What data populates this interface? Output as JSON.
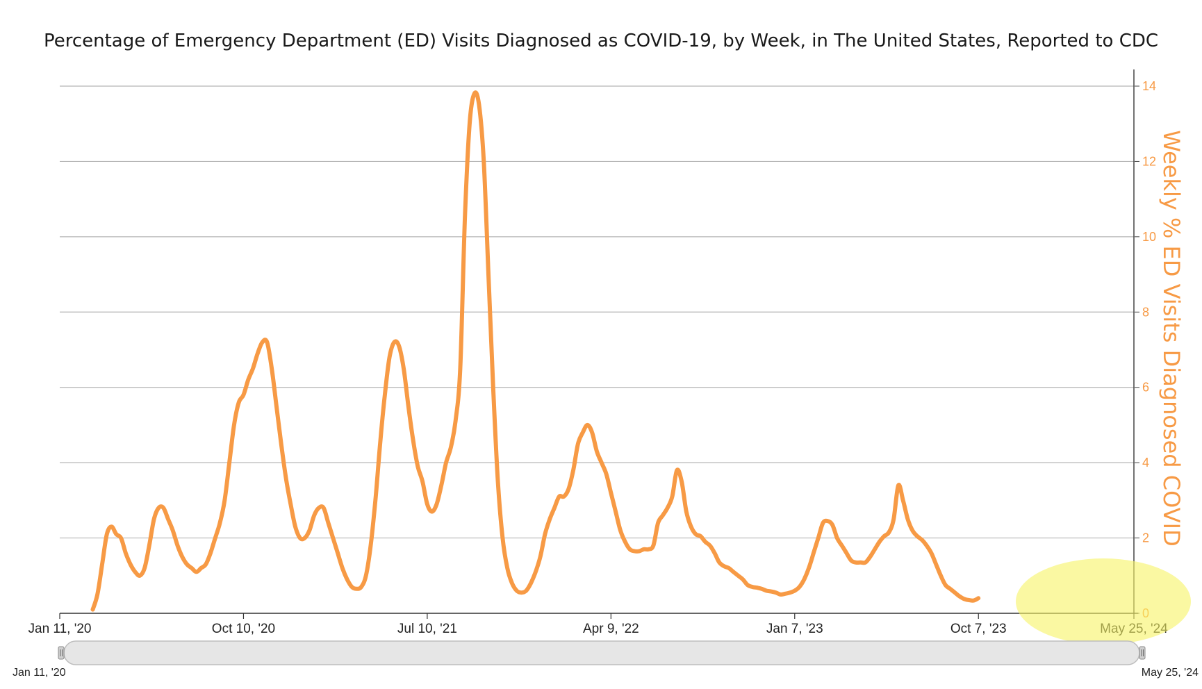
{
  "chart_data": {
    "type": "line",
    "title": "Percentage of Emergency Department (ED) Visits Diagnosed as COVID-19, by Week, in The United States, Reported to CDC",
    "ylabel": "Weekly % ED Visits Diagnosed COVID",
    "ylim": [
      0,
      14
    ],
    "yticks": [
      "0",
      "2",
      "4",
      "6",
      "8",
      "10",
      "12",
      "14"
    ],
    "x_range": [
      "2020-01-11",
      "2024-05-25"
    ],
    "xticks": [
      {
        "date": "2020-01-11",
        "label": "Jan 11, '20"
      },
      {
        "date": "2020-10-10",
        "label": "Oct 10, '20"
      },
      {
        "date": "2021-07-10",
        "label": "Jul 10, '21"
      },
      {
        "date": "2022-04-09",
        "label": "Apr 9, '22"
      },
      {
        "date": "2023-01-07",
        "label": "Jan 7, '23"
      },
      {
        "date": "2023-10-07",
        "label": "Oct 7, '23"
      },
      {
        "date": "2024-05-25",
        "label": "May 25, '24"
      }
    ],
    "grid": true,
    "line_color": "#f79a45",
    "series": [
      {
        "points": [
          [
            "2020-02-29",
            0.1
          ],
          [
            "2020-03-07",
            0.5
          ],
          [
            "2020-03-14",
            1.3
          ],
          [
            "2020-03-21",
            2.1
          ],
          [
            "2020-03-28",
            2.3
          ],
          [
            "2020-04-04",
            2.1
          ],
          [
            "2020-04-11",
            2.0
          ],
          [
            "2020-04-18",
            1.6
          ],
          [
            "2020-04-25",
            1.3
          ],
          [
            "2020-05-02",
            1.1
          ],
          [
            "2020-05-09",
            1.0
          ],
          [
            "2020-05-16",
            1.2
          ],
          [
            "2020-05-23",
            1.8
          ],
          [
            "2020-05-30",
            2.5
          ],
          [
            "2020-06-06",
            2.8
          ],
          [
            "2020-06-13",
            2.8
          ],
          [
            "2020-06-20",
            2.5
          ],
          [
            "2020-06-27",
            2.2
          ],
          [
            "2020-07-04",
            1.8
          ],
          [
            "2020-07-11",
            1.5
          ],
          [
            "2020-07-18",
            1.3
          ],
          [
            "2020-07-25",
            1.2
          ],
          [
            "2020-08-01",
            1.1
          ],
          [
            "2020-08-08",
            1.2
          ],
          [
            "2020-08-15",
            1.3
          ],
          [
            "2020-08-22",
            1.6
          ],
          [
            "2020-08-29",
            2.0
          ],
          [
            "2020-09-05",
            2.4
          ],
          [
            "2020-09-12",
            3.0
          ],
          [
            "2020-09-19",
            4.0
          ],
          [
            "2020-09-26",
            5.0
          ],
          [
            "2020-10-03",
            5.6
          ],
          [
            "2020-10-10",
            5.8
          ],
          [
            "2020-10-17",
            6.2
          ],
          [
            "2020-10-24",
            6.5
          ],
          [
            "2020-10-31",
            6.9
          ],
          [
            "2020-11-07",
            7.2
          ],
          [
            "2020-11-14",
            7.2
          ],
          [
            "2020-11-21",
            6.5
          ],
          [
            "2020-11-28",
            5.5
          ],
          [
            "2020-12-05",
            4.5
          ],
          [
            "2020-12-12",
            3.6
          ],
          [
            "2020-12-19",
            2.9
          ],
          [
            "2020-12-26",
            2.3
          ],
          [
            "2021-01-02",
            2.0
          ],
          [
            "2021-01-09",
            2.0
          ],
          [
            "2021-01-16",
            2.2
          ],
          [
            "2021-01-23",
            2.6
          ],
          [
            "2021-01-30",
            2.8
          ],
          [
            "2021-02-06",
            2.8
          ],
          [
            "2021-02-13",
            2.4
          ],
          [
            "2021-02-20",
            2.0
          ],
          [
            "2021-02-27",
            1.6
          ],
          [
            "2021-03-06",
            1.2
          ],
          [
            "2021-03-13",
            0.9
          ],
          [
            "2021-03-20",
            0.7
          ],
          [
            "2021-03-27",
            0.65
          ],
          [
            "2021-04-03",
            0.7
          ],
          [
            "2021-04-10",
            1.0
          ],
          [
            "2021-04-17",
            1.8
          ],
          [
            "2021-04-24",
            3.0
          ],
          [
            "2021-05-01",
            4.5
          ],
          [
            "2021-05-08",
            5.8
          ],
          [
            "2021-05-15",
            6.8
          ],
          [
            "2021-05-22",
            7.2
          ],
          [
            "2021-05-29",
            7.1
          ],
          [
            "2021-06-05",
            6.5
          ],
          [
            "2021-06-12",
            5.5
          ],
          [
            "2021-06-19",
            4.6
          ],
          [
            "2021-06-26",
            3.9
          ],
          [
            "2021-07-03",
            3.5
          ],
          [
            "2021-07-10",
            2.9
          ],
          [
            "2021-07-17",
            2.7
          ],
          [
            "2021-07-24",
            2.9
          ],
          [
            "2021-07-31",
            3.4
          ],
          [
            "2021-08-07",
            4.0
          ],
          [
            "2021-08-14",
            4.4
          ],
          [
            "2021-08-21",
            5.1
          ],
          [
            "2021-08-28",
            6.5
          ],
          [
            "2021-09-04",
            10.5
          ],
          [
            "2021-09-11",
            13.0
          ],
          [
            "2021-09-18",
            13.8
          ],
          [
            "2021-09-25",
            13.5
          ],
          [
            "2021-10-02",
            12.0
          ],
          [
            "2021-10-09",
            9.0
          ],
          [
            "2021-10-16",
            6.0
          ],
          [
            "2021-10-23",
            3.5
          ],
          [
            "2021-10-30",
            2.0
          ],
          [
            "2021-11-06",
            1.2
          ],
          [
            "2021-11-13",
            0.8
          ],
          [
            "2021-11-20",
            0.6
          ],
          [
            "2021-11-27",
            0.55
          ],
          [
            "2021-12-04",
            0.6
          ],
          [
            "2021-12-11",
            0.8
          ],
          [
            "2021-12-18",
            1.1
          ],
          [
            "2021-12-25",
            1.5
          ],
          [
            "2022-01-01",
            2.1
          ],
          [
            "2022-01-08",
            2.5
          ],
          [
            "2022-01-15",
            2.8
          ],
          [
            "2022-01-22",
            3.1
          ],
          [
            "2022-01-29",
            3.1
          ],
          [
            "2022-02-05",
            3.3
          ],
          [
            "2022-02-12",
            3.8
          ],
          [
            "2022-02-19",
            4.5
          ],
          [
            "2022-02-26",
            4.8
          ],
          [
            "2022-03-05",
            5.0
          ],
          [
            "2022-03-12",
            4.8
          ],
          [
            "2022-03-19",
            4.3
          ],
          [
            "2022-03-26",
            4.0
          ],
          [
            "2022-04-02",
            3.7
          ],
          [
            "2022-04-09",
            3.2
          ],
          [
            "2022-04-16",
            2.7
          ],
          [
            "2022-04-23",
            2.2
          ],
          [
            "2022-04-30",
            1.9
          ],
          [
            "2022-05-07",
            1.7
          ],
          [
            "2022-05-14",
            1.65
          ],
          [
            "2022-05-21",
            1.65
          ],
          [
            "2022-05-28",
            1.7
          ],
          [
            "2022-06-04",
            1.7
          ],
          [
            "2022-06-11",
            1.8
          ],
          [
            "2022-06-18",
            2.4
          ],
          [
            "2022-06-25",
            2.6
          ],
          [
            "2022-07-02",
            2.8
          ],
          [
            "2022-07-09",
            3.1
          ],
          [
            "2022-07-16",
            3.8
          ],
          [
            "2022-07-23",
            3.5
          ],
          [
            "2022-07-30",
            2.7
          ],
          [
            "2022-08-06",
            2.3
          ],
          [
            "2022-08-13",
            2.1
          ],
          [
            "2022-08-20",
            2.05
          ],
          [
            "2022-08-27",
            1.9
          ],
          [
            "2022-09-03",
            1.8
          ],
          [
            "2022-09-10",
            1.6
          ],
          [
            "2022-09-17",
            1.35
          ],
          [
            "2022-09-24",
            1.25
          ],
          [
            "2022-10-01",
            1.2
          ],
          [
            "2022-10-08",
            1.1
          ],
          [
            "2022-10-15",
            1.0
          ],
          [
            "2022-10-22",
            0.9
          ],
          [
            "2022-10-29",
            0.75
          ],
          [
            "2022-11-05",
            0.7
          ],
          [
            "2022-11-12",
            0.68
          ],
          [
            "2022-11-19",
            0.65
          ],
          [
            "2022-11-26",
            0.6
          ],
          [
            "2022-12-03",
            0.58
          ],
          [
            "2022-12-10",
            0.55
          ],
          [
            "2022-12-17",
            0.5
          ],
          [
            "2022-12-24",
            0.52
          ],
          [
            "2022-12-31",
            0.55
          ],
          [
            "2023-01-07",
            0.6
          ],
          [
            "2023-01-14",
            0.7
          ],
          [
            "2023-01-21",
            0.9
          ],
          [
            "2023-01-28",
            1.2
          ],
          [
            "2023-02-04",
            1.6
          ],
          [
            "2023-02-11",
            2.0
          ],
          [
            "2023-02-18",
            2.4
          ],
          [
            "2023-02-25",
            2.45
          ],
          [
            "2023-03-04",
            2.35
          ],
          [
            "2023-03-11",
            2.0
          ],
          [
            "2023-03-18",
            1.8
          ],
          [
            "2023-03-25",
            1.6
          ],
          [
            "2023-04-01",
            1.4
          ],
          [
            "2023-04-08",
            1.35
          ],
          [
            "2023-04-15",
            1.35
          ],
          [
            "2023-04-22",
            1.35
          ],
          [
            "2023-04-29",
            1.5
          ],
          [
            "2023-05-06",
            1.7
          ],
          [
            "2023-05-13",
            1.9
          ],
          [
            "2023-05-20",
            2.05
          ],
          [
            "2023-05-27",
            2.15
          ],
          [
            "2023-06-03",
            2.5
          ],
          [
            "2023-06-10",
            3.4
          ],
          [
            "2023-06-17",
            3.0
          ],
          [
            "2023-06-24",
            2.5
          ],
          [
            "2023-07-01",
            2.2
          ],
          [
            "2023-07-08",
            2.05
          ],
          [
            "2023-07-15",
            1.95
          ],
          [
            "2023-07-22",
            1.8
          ],
          [
            "2023-07-29",
            1.6
          ],
          [
            "2023-08-05",
            1.3
          ],
          [
            "2023-08-12",
            1.0
          ],
          [
            "2023-08-19",
            0.75
          ],
          [
            "2023-08-26",
            0.65
          ],
          [
            "2023-09-02",
            0.55
          ],
          [
            "2023-09-09",
            0.45
          ],
          [
            "2023-09-16",
            0.38
          ],
          [
            "2023-09-23",
            0.35
          ],
          [
            "2023-09-30",
            0.34
          ],
          [
            "2023-10-07",
            0.4
          ]
        ]
      }
    ]
  },
  "navigator": {
    "start_label": "Jan 11, '20",
    "end_label": "May 25, '24"
  },
  "highlight": {
    "color": "#f7f364"
  }
}
